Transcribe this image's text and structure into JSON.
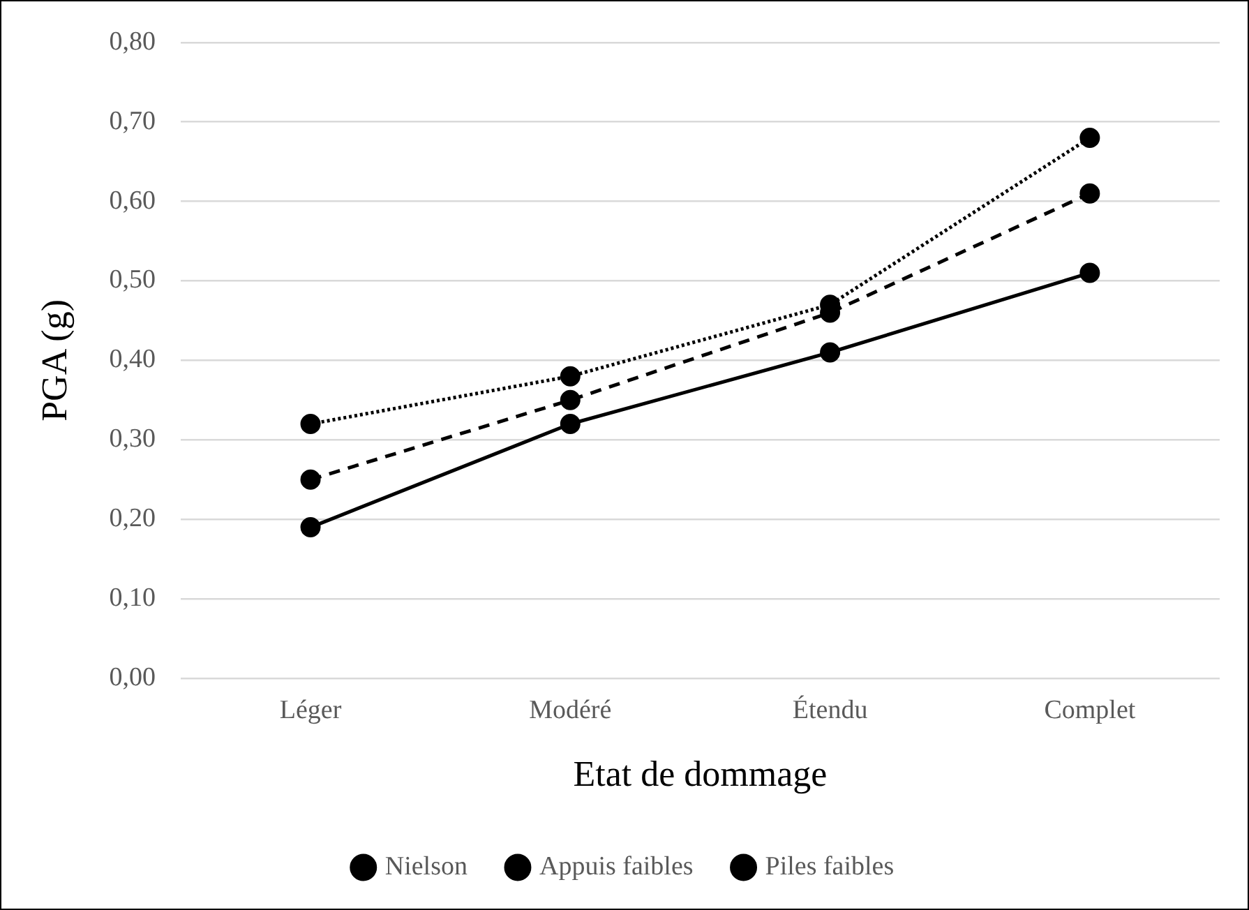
{
  "chart_data": {
    "type": "line",
    "xlabel": "Etat de dommage",
    "ylabel": "PGA (g)",
    "categories": [
      "Léger",
      "Modéré",
      "Étendu",
      "Complet"
    ],
    "series": [
      {
        "name": "Nielson",
        "color": "#000000",
        "line_style": "solid",
        "values": [
          0.19,
          0.32,
          0.41,
          0.51
        ]
      },
      {
        "name": "Appuis faibles",
        "color": "#000000",
        "line_style": "dashed",
        "values": [
          0.25,
          0.35,
          0.46,
          0.61
        ]
      },
      {
        "name": "Piles faibles",
        "color": "#000000",
        "line_style": "dotted",
        "values": [
          0.32,
          0.38,
          0.47,
          0.68
        ]
      }
    ],
    "ylim": [
      0,
      0.8
    ],
    "yticks": [
      {
        "value": 0,
        "label": "0,00"
      },
      {
        "value": 0.1,
        "label": "0,10"
      },
      {
        "value": 0.2,
        "label": "0,20"
      },
      {
        "value": 0.3,
        "label": "0,30"
      },
      {
        "value": 0.4,
        "label": "0,40"
      },
      {
        "value": 0.5,
        "label": "0,50"
      },
      {
        "value": 0.6,
        "label": "0,60"
      },
      {
        "value": 0.7,
        "label": "0,70"
      },
      {
        "value": 0.8,
        "label": "0,80"
      }
    ],
    "grid": "y",
    "legend": "bottom",
    "marker": "circle"
  }
}
